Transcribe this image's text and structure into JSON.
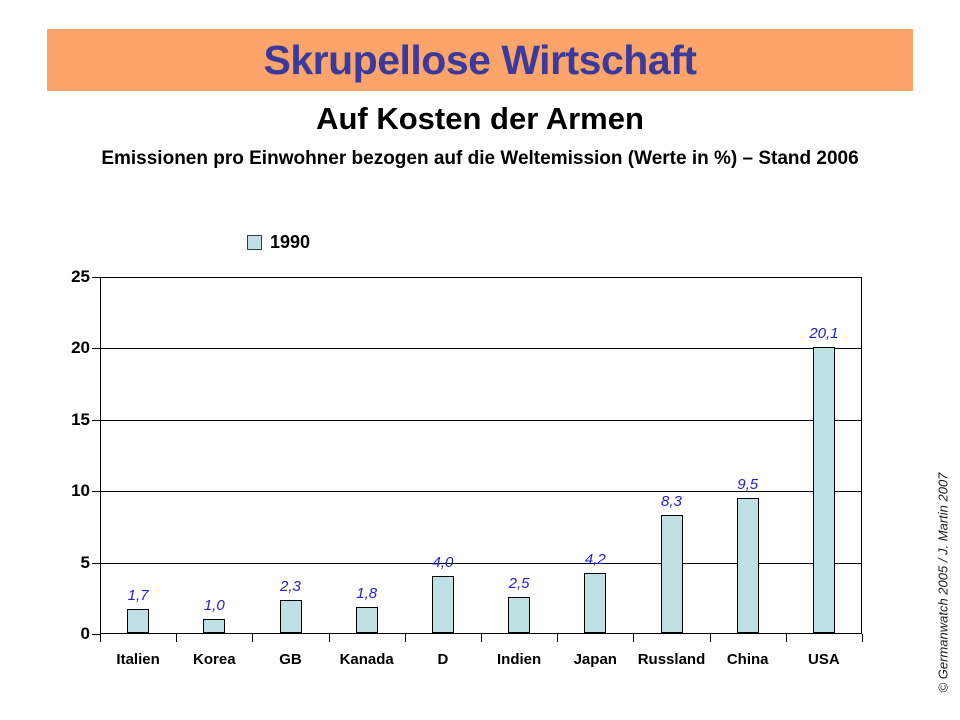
{
  "slide": {
    "banner_title": "Skrupellose Wirtschaft",
    "subtitle": "Auf Kosten der Armen",
    "description": "Emissionen pro Einwohner bezogen auf die Weltemission (Werte in %) – Stand 2006",
    "copyright": "© Germanwatch 2005 / J. Martin 2007"
  },
  "colors": {
    "banner_bg": "#FCA469",
    "banner_text": "#3A3A9C",
    "bar_fill": "#BFE0E5",
    "bar_border": "#000000",
    "value_label": "#2121CC",
    "grid": "#000000"
  },
  "chart_data": {
    "type": "bar",
    "title": "",
    "legend": [
      {
        "name": "1990",
        "color": "#BFE0E5"
      }
    ],
    "legend_position": "top-left",
    "categories": [
      "Italien",
      "Korea",
      "GB",
      "Kanada",
      "D",
      "Indien",
      "Japan",
      "Russland",
      "China",
      "USA"
    ],
    "values": [
      1.7,
      1.0,
      2.3,
      1.8,
      4.0,
      2.5,
      4.2,
      8.3,
      9.5,
      20.1
    ],
    "value_labels": [
      "1,7",
      "1,0",
      "2,3",
      "1,8",
      "4,0",
      "2,5",
      "4,2",
      "8,3",
      "9,5",
      "20,1"
    ],
    "ylabel": "",
    "xlabel": "",
    "ylim": [
      0,
      25
    ],
    "yticks": [
      0,
      5,
      10,
      15,
      20,
      25
    ],
    "grid": true
  }
}
